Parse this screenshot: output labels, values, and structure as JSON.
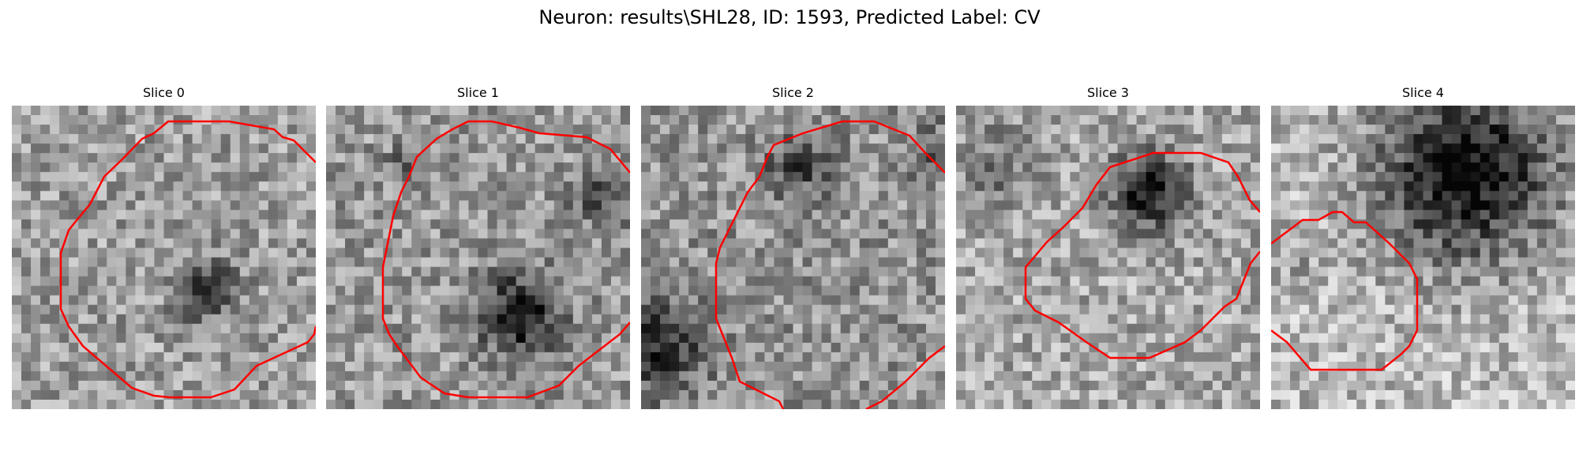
{
  "figure": {
    "title": "Neuron: results\\SHL28, ID: 1593, Predicted Label: CV"
  },
  "contour_color": "#ff0000",
  "colormap": "grayscale",
  "slices": [
    {
      "title": "Slice 0"
    },
    {
      "title": "Slice 1"
    },
    {
      "title": "Slice 2"
    },
    {
      "title": "Slice 3"
    },
    {
      "title": "Slice 4"
    }
  ]
}
